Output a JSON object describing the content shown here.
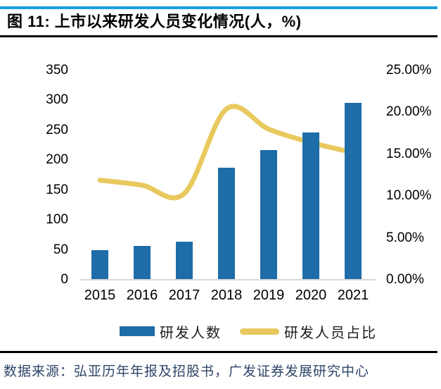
{
  "header": {
    "figure_label": "图 11:",
    "title": "图 11: 上市以来研发人员变化情况(人，%)"
  },
  "chart_data": {
    "type": "bar",
    "title": "上市以来研发人员变化情况(人，%)",
    "categories": [
      "2015",
      "2016",
      "2017",
      "2018",
      "2019",
      "2020",
      "2021"
    ],
    "series": [
      {
        "name": "研发人数",
        "type": "bar",
        "axis": "left",
        "values": [
          50,
          57,
          64,
          187,
          217,
          246,
          296
        ]
      },
      {
        "name": "研发人员占比",
        "type": "line",
        "axis": "right",
        "unit": "%",
        "values": [
          11.9,
          11.3,
          10.3,
          20.4,
          18.0,
          16.4,
          15.2
        ]
      }
    ],
    "left_axis": {
      "min": 0,
      "max": 350,
      "step": 50,
      "tick_labels": [
        "350",
        "300",
        "250",
        "200",
        "150",
        "100",
        "50",
        "0"
      ]
    },
    "right_axis": {
      "min": 0,
      "max": 25,
      "step": 5,
      "tick_labels": [
        "25.00%",
        "20.00%",
        "15.00%",
        "10.00%",
        "5.00%",
        "0.00%"
      ]
    },
    "legend_position": "bottom",
    "grid": false,
    "line_smooth": true,
    "colors": {
      "bar": "#1E6CA8",
      "line": "#E9C95F",
      "axis_line": "#D9D9D9"
    }
  },
  "footer": {
    "source": "数据来源：弘亚历年年报及招股书，广发证券发展研究中心"
  },
  "style": {
    "accent_top": "#1E9FDF"
  }
}
